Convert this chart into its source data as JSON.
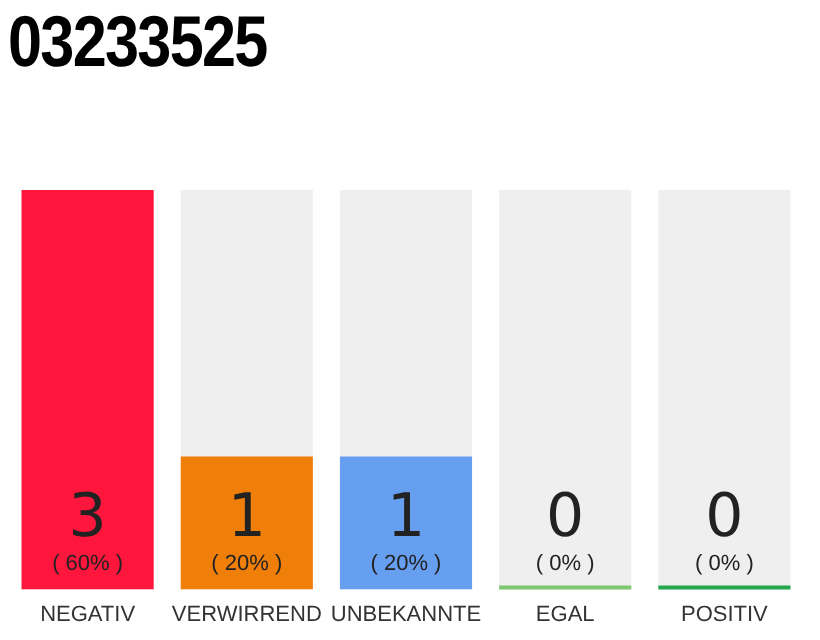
{
  "chart_data": {
    "type": "bar",
    "title": "03233525",
    "categories": [
      "NEGATIV",
      "VERWIRREND",
      "UNBEKANNTE",
      "EGAL",
      "POSITIV"
    ],
    "values": [
      3,
      1,
      1,
      0,
      0
    ],
    "colors": [
      "#ff163c",
      "#f07f0a",
      "#679ff0",
      "#7dc870",
      "#22a84a"
    ],
    "value_labels": [
      "3\n( 60% )",
      "1\n( 20% )",
      "1\n( 20% )",
      "0\n( 0% )",
      "0\n( 0% )"
    ],
    "ylim": [
      0,
      3
    ],
    "legend": false
  }
}
